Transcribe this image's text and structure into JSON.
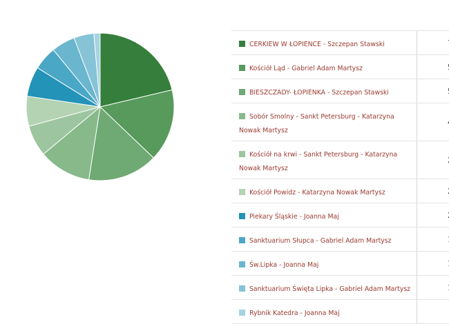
{
  "chart_data": {
    "type": "pie",
    "slices": [
      {
        "label": "CERKIEW W ŁOPIENCE - Szczepan Stawski",
        "value": 78,
        "color": "#357e3b"
      },
      {
        "label": "Kościół Ląd - Gabriel Adam Martysz",
        "value": 58,
        "color": "#579a5c"
      },
      {
        "label": "BIESZCZADY- ŁOPIENKA - Szczepan Stawski",
        "value": 56,
        "color": "#6fa974"
      },
      {
        "label": "Sobór Smolny - Sankt Petersburg - Katarzyna Nowak Martysz",
        "value": 42,
        "color": "#88b98b"
      },
      {
        "label": "Kościół na krwi - Sankt Petersburg - Katarzyna Nowak Martysz",
        "value": 25,
        "color": "#9dc59f"
      },
      {
        "label": "Kościół Powidz - Katarzyna Nowak Martysz",
        "value": 24,
        "color": "#b3d3b3"
      },
      {
        "label": "Piekary Śląskie - Joanna Maj",
        "value": 24,
        "color": "#2393b8"
      },
      {
        "label": "Sanktuarium Słupca - Gabriel Adam Martysz",
        "value": 19,
        "color": "#4aa7c6"
      },
      {
        "label": "Św.Lipka - Joanna Maj",
        "value": 19,
        "color": "#69b6ce"
      },
      {
        "label": "Sanktuarium Święta Lipka - Gabriel Adam Martysz",
        "value": 16,
        "color": "#86c3d7"
      },
      {
        "label": "Rybnik Katedra - Joanna Maj",
        "value": 5,
        "color": "#a7d3e1"
      }
    ]
  }
}
